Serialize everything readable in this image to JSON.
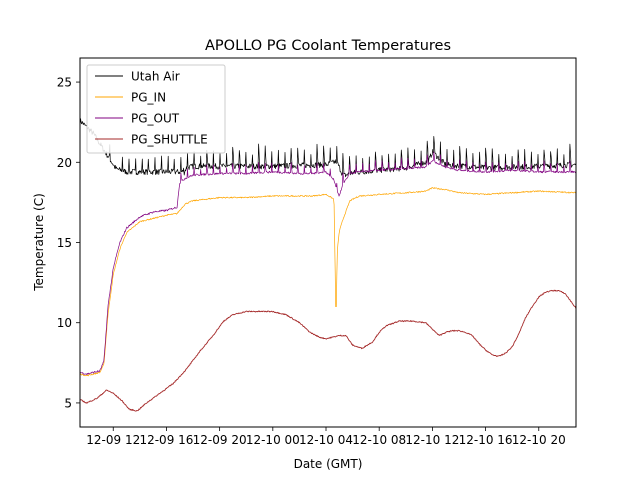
{
  "chart_data": {
    "type": "line",
    "title": "APOLLO PG Coolant Temperatures",
    "xlabel": "Date (GMT)",
    "ylabel": "Temperature (C)",
    "xlim": [
      9.5,
      46.8
    ],
    "ylim": [
      3.5,
      26.5
    ],
    "x_unit": "hours since 2023-12-09 00:00 GMT",
    "x_ticks": [
      {
        "value": 12,
        "label": "12-09 12"
      },
      {
        "value": 16,
        "label": "12-09 16"
      },
      {
        "value": 20,
        "label": "12-09 20"
      },
      {
        "value": 24,
        "label": "12-10 00"
      },
      {
        "value": 28,
        "label": "12-10 04"
      },
      {
        "value": 32,
        "label": "12-10 08"
      },
      {
        "value": 36,
        "label": "12-10 12"
      },
      {
        "value": 40,
        "label": "12-10 16"
      },
      {
        "value": 44,
        "label": "12-10 20"
      }
    ],
    "y_ticks": [
      5,
      10,
      15,
      20,
      25
    ],
    "grid": false,
    "legend_position": "top-left",
    "series": [
      {
        "name": "Utah Air",
        "color": "#000000",
        "x": [
          9.5,
          10.5,
          11.5,
          12.2,
          13,
          14,
          15,
          16,
          16.6,
          17.2,
          17.5,
          18,
          20,
          24,
          28,
          28.8,
          29.3,
          30,
          34,
          35.7,
          36,
          37,
          40,
          44,
          46.8
        ],
        "y": [
          22.6,
          21.8,
          20.5,
          19.6,
          19.4,
          19.4,
          19.4,
          19.4,
          19.4,
          19.4,
          19.9,
          20.0,
          20.0,
          20.0,
          20.1,
          20.3,
          19.4,
          19.6,
          19.9,
          20.3,
          20.9,
          20.1,
          19.9,
          20.0,
          20.1
        ]
      },
      {
        "name": "PG_IN",
        "color": "#ffa500",
        "x": [
          9.5,
          10,
          11,
          11.3,
          11.6,
          12,
          12.5,
          13,
          14,
          15,
          16,
          16.8,
          17,
          17.4,
          18,
          20,
          22,
          24,
          26,
          27,
          28,
          28.6,
          28.75,
          28.85,
          29.0,
          29.3,
          29.8,
          30.5,
          32,
          34,
          35.5,
          36,
          37,
          38,
          40,
          42,
          44,
          46.8
        ],
        "y": [
          6.8,
          6.7,
          6.9,
          7.4,
          10.5,
          13.0,
          14.6,
          15.6,
          16.3,
          16.5,
          16.7,
          16.8,
          17.0,
          17.4,
          17.6,
          17.8,
          17.8,
          17.9,
          17.9,
          17.9,
          18.0,
          17.7,
          10.0,
          14.5,
          15.7,
          16.5,
          17.6,
          17.9,
          18.0,
          18.1,
          18.2,
          18.4,
          18.3,
          18.1,
          18.0,
          18.1,
          18.2,
          18.1
        ]
      },
      {
        "name": "PG_OUT",
        "color": "#800080",
        "x": [
          9.5,
          10,
          11,
          11.3,
          11.6,
          12,
          12.5,
          13,
          14,
          15,
          16,
          16.8,
          17,
          17.4,
          18,
          20,
          22,
          24,
          26,
          27,
          28,
          28.6,
          28.75,
          28.85,
          29.0,
          29.3,
          29.8,
          30.5,
          32,
          34,
          35.5,
          36,
          37,
          38,
          40,
          42,
          44,
          46.8
        ],
        "y": [
          6.9,
          6.8,
          7.0,
          7.6,
          11.0,
          13.4,
          15.0,
          15.9,
          16.6,
          16.9,
          17.0,
          17.2,
          18.8,
          19.1,
          19.3,
          19.4,
          19.4,
          19.5,
          19.4,
          19.4,
          19.5,
          19.0,
          18.6,
          18.3,
          18.0,
          18.8,
          19.4,
          19.5,
          19.6,
          19.7,
          19.8,
          20.2,
          19.8,
          19.6,
          19.5,
          19.6,
          19.5,
          19.5
        ]
      },
      {
        "name": "PG_SHUTTLE",
        "color": "#a52a2a",
        "x": [
          9.5,
          10,
          10.8,
          11.5,
          12,
          12.7,
          13.2,
          13.8,
          14.5,
          15.5,
          16.5,
          17.5,
          18.5,
          19.5,
          20.3,
          21,
          22,
          23,
          24,
          25,
          26,
          26.8,
          27.5,
          28,
          28.5,
          29,
          29.5,
          30,
          30.7,
          31.5,
          32,
          32.5,
          33.5,
          34.5,
          35.5,
          36,
          36.5,
          37,
          37.5,
          38,
          38.5,
          39,
          39.5,
          40,
          40.5,
          41,
          41.5,
          42,
          42.5,
          43,
          43.5,
          44,
          44.5,
          45,
          45.5,
          46,
          46.8
        ],
        "y": [
          5.2,
          5.0,
          5.3,
          5.8,
          5.6,
          5.1,
          4.6,
          4.5,
          5.0,
          5.6,
          6.2,
          7.1,
          8.2,
          9.2,
          10.1,
          10.5,
          10.7,
          10.7,
          10.7,
          10.5,
          10.0,
          9.4,
          9.1,
          9.0,
          9.1,
          9.2,
          9.2,
          8.6,
          8.4,
          8.8,
          9.4,
          9.8,
          10.1,
          10.1,
          10.0,
          9.6,
          9.2,
          9.4,
          9.5,
          9.5,
          9.4,
          9.2,
          8.7,
          8.3,
          8.0,
          7.9,
          8.1,
          8.5,
          9.3,
          10.3,
          11.0,
          11.6,
          11.9,
          12.0,
          12.0,
          11.8,
          10.9
        ]
      }
    ]
  }
}
